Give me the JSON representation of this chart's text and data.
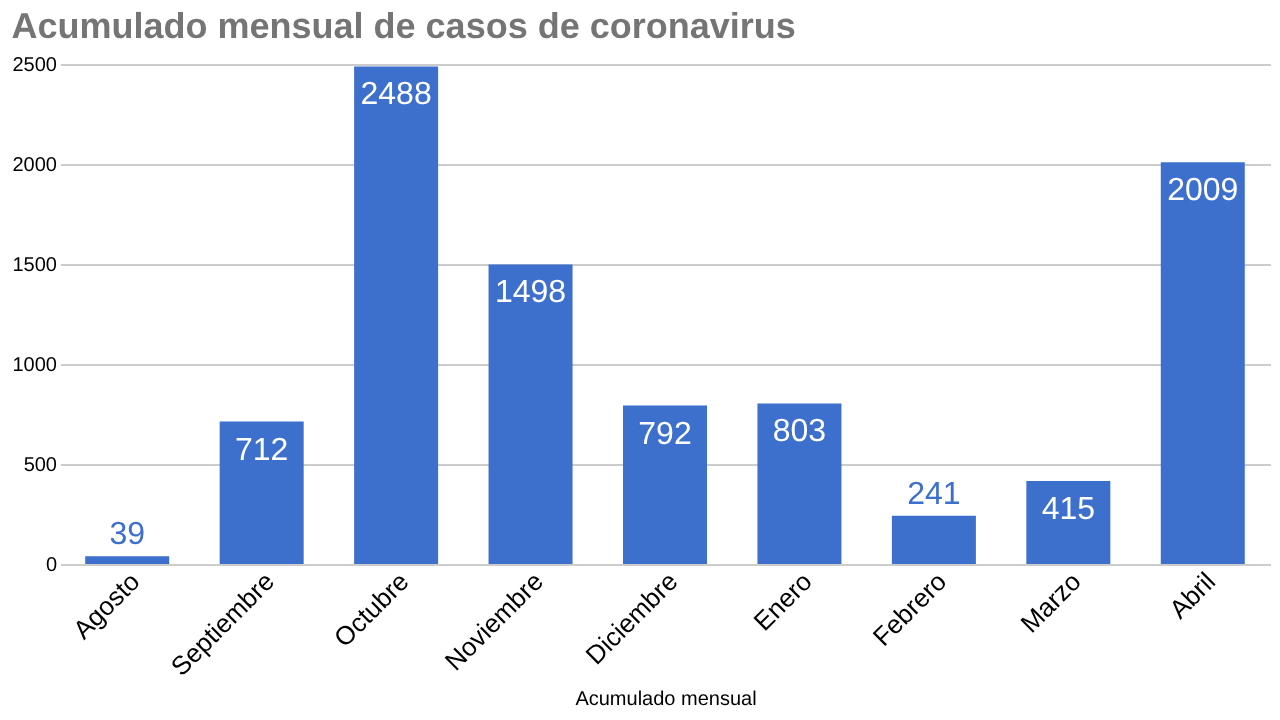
{
  "chart_data": {
    "type": "bar",
    "title": "Acumulado mensual de casos de coronavirus",
    "xlabel": "Acumulado mensual",
    "categories": [
      "Agosto",
      "Septiembre",
      "Octubre",
      "Noviembre",
      "Diciembre",
      "Enero",
      "Febrero",
      "Marzo",
      "Abril"
    ],
    "values": [
      39,
      712,
      2488,
      1498,
      792,
      803,
      241,
      415,
      2009
    ],
    "color": "#3d6fcc",
    "ylim": [
      0,
      2500
    ],
    "yticks": [
      0,
      500,
      1000,
      1500,
      2000,
      2500
    ],
    "grid": "y",
    "data_labels": true
  }
}
